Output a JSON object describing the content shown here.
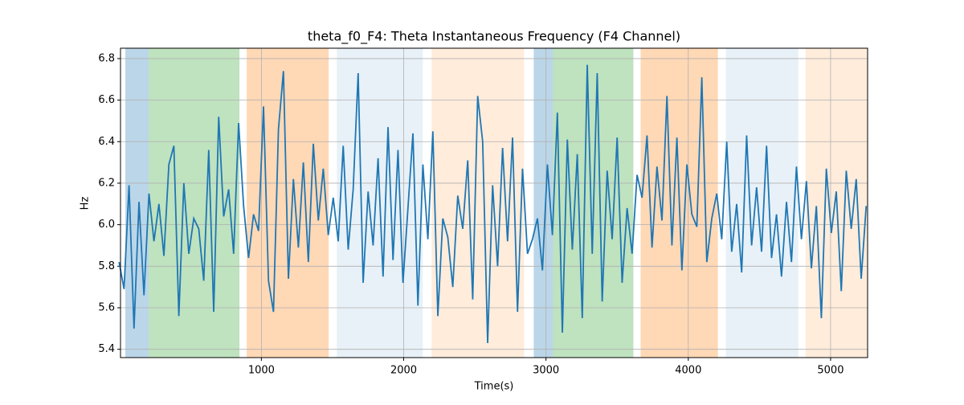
{
  "chart_data": {
    "type": "line",
    "title": "theta_f0_F4: Theta Instantaneous Frequency (F4 Channel)",
    "xlabel": "Time(s)",
    "ylabel": "Hz",
    "x": [
      0,
      35,
      70,
      105,
      140,
      175,
      210,
      245,
      280,
      315,
      350,
      385,
      420,
      455,
      490,
      525,
      560,
      595,
      630,
      665,
      700,
      735,
      770,
      805,
      840,
      875,
      910,
      945,
      980,
      1015,
      1050,
      1085,
      1120,
      1155,
      1190,
      1225,
      1260,
      1295,
      1330,
      1365,
      1400,
      1435,
      1470,
      1505,
      1540,
      1575,
      1610,
      1645,
      1680,
      1715,
      1750,
      1785,
      1820,
      1855,
      1890,
      1925,
      1960,
      1995,
      2030,
      2065,
      2100,
      2135,
      2170,
      2205,
      2240,
      2275,
      2310,
      2345,
      2380,
      2415,
      2450,
      2485,
      2520,
      2555,
      2590,
      2625,
      2660,
      2695,
      2730,
      2765,
      2800,
      2835,
      2870,
      2905,
      2940,
      2975,
      3010,
      3045,
      3080,
      3115,
      3150,
      3185,
      3220,
      3255,
      3290,
      3325,
      3360,
      3395,
      3430,
      3465,
      3500,
      3535,
      3570,
      3605,
      3640,
      3675,
      3710,
      3745,
      3780,
      3815,
      3850,
      3885,
      3920,
      3955,
      3990,
      4025,
      4060,
      4095,
      4130,
      4165,
      4200,
      4235,
      4270,
      4305,
      4340,
      4375,
      4410,
      4445,
      4480,
      4515,
      4550,
      4585,
      4620,
      4655,
      4690,
      4725,
      4760,
      4795,
      4830,
      4865,
      4900,
      4935,
      4970,
      5005,
      5040,
      5075,
      5110,
      5145,
      5180,
      5215,
      5250
    ],
    "series": [
      {
        "name": "theta_f0_F4",
        "color": "#1f77b4",
        "values": [
          5.82,
          5.69,
          6.19,
          5.5,
          6.11,
          5.66,
          6.15,
          5.92,
          6.1,
          5.85,
          6.29,
          6.38,
          5.56,
          6.2,
          5.86,
          6.03,
          5.98,
          5.73,
          6.36,
          5.58,
          6.52,
          6.04,
          6.17,
          5.86,
          6.49,
          6.09,
          5.84,
          6.05,
          5.97,
          6.57,
          5.73,
          5.58,
          6.46,
          6.74,
          5.74,
          6.22,
          5.89,
          6.3,
          5.82,
          6.39,
          6.02,
          6.27,
          5.95,
          6.13,
          5.92,
          6.38,
          5.88,
          6.17,
          6.73,
          5.72,
          6.16,
          5.9,
          6.32,
          5.75,
          6.47,
          5.83,
          6.36,
          5.72,
          6.08,
          6.44,
          5.61,
          6.29,
          5.93,
          6.45,
          5.56,
          6.03,
          5.94,
          5.7,
          6.14,
          5.98,
          6.31,
          5.64,
          6.62,
          6.4,
          5.43,
          6.19,
          5.8,
          6.37,
          5.92,
          6.42,
          5.58,
          6.27,
          5.86,
          5.93,
          6.03,
          5.78,
          6.29,
          5.95,
          6.54,
          5.48,
          6.41,
          5.88,
          6.34,
          5.55,
          6.77,
          5.86,
          6.73,
          5.63,
          6.26,
          5.93,
          6.42,
          5.72,
          6.08,
          5.86,
          6.24,
          6.13,
          6.43,
          5.89,
          6.28,
          6.02,
          6.62,
          5.9,
          6.42,
          5.78,
          6.29,
          6.05,
          5.99,
          6.71,
          5.82,
          6.03,
          6.15,
          5.93,
          6.4,
          5.87,
          6.1,
          5.77,
          6.43,
          5.9,
          6.18,
          5.87,
          6.38,
          5.84,
          6.05,
          5.75,
          6.11,
          5.82,
          6.28,
          5.93,
          6.21,
          5.79,
          6.09,
          5.55,
          6.27,
          5.96,
          6.16,
          5.68,
          6.26,
          5.98,
          6.22,
          5.74,
          6.09
        ]
      }
    ],
    "spans": [
      {
        "x0": 44,
        "x1": 208,
        "color": "#1f77b4",
        "alpha": 0.3
      },
      {
        "x0": 208,
        "x1": 846,
        "color": "#2ca02c",
        "alpha": 0.3
      },
      {
        "x0": 897,
        "x1": 1473,
        "color": "#ff7f0e",
        "alpha": 0.3
      },
      {
        "x0": 1530,
        "x1": 2134,
        "color": "#1f77b4",
        "alpha": 0.1
      },
      {
        "x0": 2196,
        "x1": 2846,
        "color": "#ff7f0e",
        "alpha": 0.15
      },
      {
        "x0": 2914,
        "x1": 3049,
        "color": "#1f77b4",
        "alpha": 0.3
      },
      {
        "x0": 3049,
        "x1": 3614,
        "color": "#2ca02c",
        "alpha": 0.3
      },
      {
        "x0": 3665,
        "x1": 4208,
        "color": "#ff7f0e",
        "alpha": 0.3
      },
      {
        "x0": 4264,
        "x1": 4773,
        "color": "#1f77b4",
        "alpha": 0.1
      },
      {
        "x0": 4824,
        "x1": 5260,
        "color": "#ff7f0e",
        "alpha": 0.15
      }
    ],
    "xlim": [
      10,
      5260
    ],
    "ylim": [
      5.36,
      6.85
    ],
    "xticks": [
      1000,
      2000,
      3000,
      4000,
      5000
    ],
    "yticks": [
      5.4,
      5.6,
      5.8,
      {
        "value": 6,
        "label": "6.0"
      },
      6.2,
      6.4,
      6.6,
      6.8
    ],
    "grid": true
  }
}
